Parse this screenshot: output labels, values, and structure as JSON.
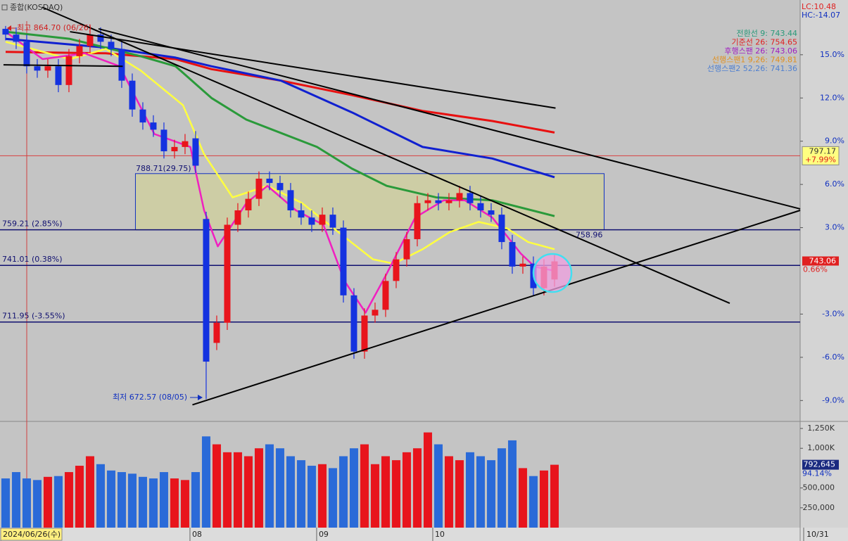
{
  "chart_data": {
    "type": "candlestick",
    "title": "종합(KOSDAQ)",
    "lc_label": "LC:10.48",
    "hc_label": "HC:-14.07",
    "legend": [
      {
        "text": "전환선 9: 743.44",
        "color": "#2a9a7a"
      },
      {
        "text": "기준선 26: 754.65",
        "color": "#e02020"
      },
      {
        "text": "후행스팬 26: 743.06",
        "color": "#a020c0"
      },
      {
        "text": "선행스팬1 9,26: 749.81",
        "color": "#e09020"
      },
      {
        "text": "선행스팬2 52,26: 741.36",
        "color": "#5080d0"
      }
    ],
    "annotations": {
      "high": "최고 864.70 (06/26)",
      "low": "최저 672.57 (08/05)",
      "pivot": "788.71(29.75)"
    },
    "categories": [
      "2024/06/26(수)",
      null,
      null,
      null,
      null,
      null,
      null,
      null,
      null,
      null,
      null,
      null,
      null,
      null,
      null,
      null,
      null,
      null,
      "08",
      null,
      null,
      null,
      null,
      null,
      null,
      null,
      null,
      null,
      null,
      null,
      "09",
      null,
      null,
      null,
      null,
      null,
      null,
      null,
      null,
      null,
      null,
      "10",
      null,
      null,
      null,
      null,
      null,
      null,
      null,
      null,
      null,
      null,
      null
    ],
    "x_end_label": "10/31",
    "xlim": [
      -0.53,
      75.27
    ],
    "ylim": [
      -10.4,
      18.8
    ],
    "yticks": [
      {
        "value": 15,
        "label": "15.0%"
      },
      {
        "value": 12,
        "label": "12.0%"
      },
      {
        "value": 9,
        "label": "9.0%"
      },
      {
        "value": 6,
        "label": "6.0%"
      },
      {
        "value": 3,
        "label": "3.0%"
      },
      {
        "value": -3,
        "label": "-3.0%"
      },
      {
        "value": -6,
        "label": "-6.0%"
      },
      {
        "value": -9,
        "label": "-9.0%"
      }
    ],
    "candles": {
      "up_color": "#e8141c",
      "down_color": "#1432e0",
      "open": [
        16.8,
        16.4,
        15.9,
        14.2,
        13.9,
        14.2,
        12.9,
        14.9,
        15.6,
        16.4,
        15.9,
        15.4,
        13.2,
        11.2,
        10.3,
        9.8,
        8.3,
        8.6,
        9.2,
        3.6,
        -5.0,
        -3.6,
        3.2,
        4.2,
        5.0,
        6.4,
        6.1,
        5.6,
        4.2,
        3.7,
        3.2,
        3.9,
        3.0,
        -1.7,
        -5.6,
        -3.1,
        -2.7,
        -0.7,
        0.8,
        2.2,
        4.7,
        4.9,
        4.7,
        4.9,
        5.4,
        4.7,
        4.2,
        3.9,
        2.0,
        0.3,
        0.5,
        -1.2,
        -0.6
      ],
      "high": [
        17.0,
        16.9,
        16.4,
        14.7,
        14.7,
        14.7,
        15.4,
        16.1,
        17.1,
        16.9,
        16.4,
        15.9,
        13.7,
        11.7,
        10.8,
        10.3,
        9.1,
        9.5,
        9.7,
        4.1,
        -3.1,
        3.7,
        4.7,
        5.5,
        6.9,
        6.9,
        6.6,
        6.1,
        4.7,
        4.2,
        4.4,
        4.4,
        3.5,
        -1.2,
        -2.6,
        -2.2,
        -0.2,
        1.3,
        2.7,
        5.2,
        5.4,
        5.4,
        5.4,
        5.9,
        5.9,
        5.2,
        4.7,
        4.4,
        2.5,
        1.0,
        1.0,
        0.8,
        1.2
      ],
      "low": [
        16.0,
        15.4,
        13.7,
        13.4,
        13.4,
        12.4,
        12.4,
        14.4,
        15.1,
        15.4,
        14.9,
        12.7,
        10.7,
        9.8,
        9.3,
        7.8,
        7.8,
        8.1,
        6.8,
        -8.9,
        -5.5,
        -4.1,
        2.7,
        3.7,
        4.5,
        5.6,
        5.1,
        3.7,
        3.2,
        2.7,
        2.7,
        2.5,
        -2.2,
        -6.1,
        -6.1,
        -3.6,
        -3.2,
        -1.2,
        0.3,
        1.7,
        4.2,
        4.2,
        4.2,
        4.4,
        4.2,
        3.7,
        3.4,
        1.5,
        -0.2,
        -0.2,
        -1.7,
        -1.7,
        -1.1
      ],
      "close": [
        16.4,
        15.9,
        14.2,
        13.9,
        14.2,
        12.9,
        14.9,
        15.6,
        16.4,
        15.9,
        15.4,
        13.2,
        11.2,
        10.3,
        9.8,
        8.3,
        8.6,
        9.0,
        7.3,
        -6.3,
        -3.6,
        3.2,
        4.2,
        5.0,
        6.4,
        6.1,
        5.6,
        4.2,
        3.7,
        3.2,
        3.9,
        3.0,
        -1.7,
        -5.6,
        -3.1,
        -2.7,
        -0.7,
        0.8,
        2.2,
        4.7,
        4.9,
        4.7,
        4.9,
        5.4,
        4.7,
        4.2,
        3.9,
        2.0,
        0.3,
        0.5,
        -1.2,
        0.3,
        0.66
      ],
      "last_price_label": "743.06",
      "last_pct_label": "0.66%"
    },
    "lines": [
      {
        "color": "#e81010",
        "width": 3,
        "x": [
          0,
          9.5,
          16.1,
          19.5,
          26.1,
          32.8,
          39.5,
          46.1,
          52
        ],
        "values": [
          15.2,
          15.1,
          14.7,
          14.0,
          13.2,
          12.2,
          11.1,
          10.4,
          9.6
        ]
      },
      {
        "color": "#1020d0",
        "width": 3,
        "x": [
          0,
          9.5,
          16.1,
          19.5,
          26.1,
          32.8,
          39.5,
          46.1,
          52
        ],
        "values": [
          16.1,
          15.5,
          14.8,
          14.2,
          13.2,
          11.0,
          8.6,
          7.8,
          6.5
        ]
      },
      {
        "color": "#2a9a3a",
        "width": 3,
        "x": [
          0,
          6.1,
          12.8,
          16.1,
          19.5,
          22.8,
          29.5,
          32.8,
          36.1,
          40.8,
          46.1,
          52
        ],
        "values": [
          16.6,
          16.1,
          14.9,
          14.2,
          12.0,
          10.5,
          8.6,
          7.1,
          5.9,
          5.1,
          4.9,
          3.8
        ]
      },
      {
        "color": "#ffff40",
        "width": 2.5,
        "x": [
          0,
          6.1,
          9.5,
          12.8,
          16.8,
          18.8,
          21.5,
          24.8,
          28.1,
          31.5,
          34.8,
          36.8,
          39.5,
          42.1,
          44.8,
          47.5,
          49.5,
          52
        ],
        "values": [
          15.9,
          14.7,
          15.4,
          13.9,
          11.5,
          8.1,
          5.1,
          5.9,
          4.7,
          2.7,
          0.8,
          0.5,
          1.5,
          2.7,
          3.4,
          2.95,
          2.0,
          1.5
        ]
      },
      {
        "color": "#f020c0",
        "width": 2.5,
        "x": [
          0,
          3.5,
          7.5,
          10.8,
          14.1,
          17.5,
          18.8,
          20.1,
          22.8,
          24.8,
          27.5,
          30.1,
          32.1,
          34.1,
          36.1,
          38.8,
          41.5,
          43.5,
          46.1,
          48.8,
          50.1,
          52
        ],
        "values": [
          16.6,
          14.7,
          15.1,
          14.2,
          9.5,
          8.6,
          4.2,
          1.7,
          4.7,
          5.9,
          4.2,
          3.2,
          -0.7,
          -2.9,
          -0.2,
          3.7,
          4.9,
          4.9,
          3.7,
          1.2,
          0.3,
          0.0
        ]
      }
    ],
    "hlines": [
      {
        "value": 7.99,
        "label": "797.17",
        "pct_label": "+7.99%",
        "color": "#d84040"
      },
      {
        "value": 2.85,
        "label": "759.21 (2.85%)",
        "color": "#101070"
      },
      {
        "value": 0.38,
        "label": "741.01 (0.38%)",
        "color": "#101070"
      },
      {
        "value": -3.55,
        "label": "711.95 (-3.55%)",
        "color": "#101070"
      }
    ],
    "box": {
      "x": [
        12.3,
        56.7
      ],
      "y": [
        2.85,
        6.75
      ],
      "label": "758.96"
    },
    "trendlines": [
      {
        "x": [
          3.47,
          68.6
        ],
        "y": [
          18.3,
          -2.25
        ]
      },
      {
        "x": [
          8.8,
          75.27
        ],
        "y": [
          16.8,
          4.3
        ]
      },
      {
        "x": [
          6.1,
          52.1
        ],
        "y": [
          16.6,
          11.3
        ]
      },
      {
        "x": [
          -0.2,
          11.1
        ],
        "y": [
          14.3,
          14.2
        ]
      },
      {
        "x": [
          17.7,
          75.27
        ],
        "y": [
          -9.3,
          4.2
        ]
      }
    ],
    "volume": {
      "values": [
        620000,
        700000,
        620000,
        600000,
        640000,
        650000,
        700000,
        780000,
        900000,
        800000,
        720000,
        700000,
        680000,
        640000,
        620000,
        700000,
        620000,
        600000,
        700000,
        1150000,
        1050000,
        950000,
        950000,
        900000,
        1000000,
        1050000,
        1000000,
        900000,
        850000,
        780000,
        800000,
        750000,
        900000,
        1000000,
        1050000,
        800000,
        900000,
        850000,
        950000,
        1000000,
        1200000,
        1050000,
        900000,
        850000,
        950000,
        900000,
        850000,
        1000000,
        1100000,
        750000,
        650000,
        720000,
        792645
      ],
      "ylim": [
        0,
        1330000
      ],
      "yticks": [
        {
          "value": 1250000,
          "label": "1,250K"
        },
        {
          "value": 1000000,
          "label": "1,000K"
        },
        {
          "value": 500000,
          "label": "500,000"
        },
        {
          "value": 250000,
          "label": "250,000"
        }
      ],
      "last_label": "792,645",
      "pct_label": "94.14%"
    }
  }
}
